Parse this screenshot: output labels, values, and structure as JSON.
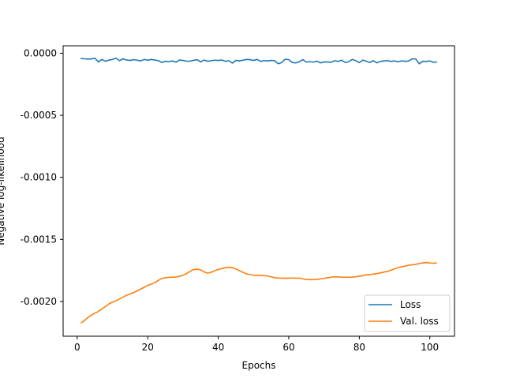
{
  "chart_data": {
    "type": "line",
    "title": "",
    "xlabel": "Epochs",
    "ylabel": "Negative log-likelihood",
    "xlim": [
      -4,
      107
    ],
    "ylim": [
      -0.00228,
      6e-05
    ],
    "xticks": [
      0,
      20,
      40,
      60,
      80,
      100
    ],
    "yticks": [
      0.0,
      -0.0005,
      -0.001,
      -0.0015,
      -0.002
    ],
    "ytick_labels": [
      "0.0000",
      "-0.0005",
      "-0.0010",
      "-0.0015",
      "-0.0020"
    ],
    "grid": false,
    "legend_position": "lower-right",
    "series": [
      {
        "name": "Loss",
        "color": "#1f77b4",
        "x": [
          1,
          2,
          3,
          4,
          5,
          6,
          7,
          8,
          9,
          10,
          11,
          12,
          13,
          14,
          15,
          16,
          17,
          18,
          19,
          20,
          21,
          22,
          23,
          24,
          25,
          26,
          27,
          28,
          29,
          30,
          31,
          32,
          33,
          34,
          35,
          36,
          37,
          38,
          39,
          40,
          41,
          42,
          43,
          44,
          45,
          46,
          47,
          48,
          49,
          50,
          51,
          52,
          53,
          54,
          55,
          56,
          57,
          58,
          59,
          60,
          61,
          62,
          63,
          64,
          65,
          66,
          67,
          68,
          69,
          70,
          71,
          72,
          73,
          74,
          75,
          76,
          77,
          78,
          79,
          80,
          81,
          82,
          83,
          84,
          85,
          86,
          87,
          88,
          89,
          90,
          91,
          92,
          93,
          94,
          95,
          96,
          97,
          98,
          99,
          100,
          101,
          102
        ],
        "y": [
          -4.2e-05,
          -4.5e-05,
          -4.7e-05,
          -4.6e-05,
          -4e-05,
          -7e-05,
          -5e-05,
          -6.5e-05,
          -5.5e-05,
          -5e-05,
          -4e-05,
          -6e-05,
          -4.5e-05,
          -5.5e-05,
          -5.8e-05,
          -5.2e-05,
          -5.6e-05,
          -6.2e-05,
          -5e-05,
          -5.7e-05,
          -5e-05,
          -5.5e-05,
          -6e-05,
          -7.5e-05,
          -6.5e-05,
          -6.8e-05,
          -6.2e-05,
          -7.2e-05,
          -5.5e-05,
          -5.8e-05,
          -6.4e-05,
          -6.4e-05,
          -5.7e-05,
          -5.2e-05,
          -7e-05,
          -5.5e-05,
          -6.5e-05,
          -6e-05,
          -5.6e-05,
          -5.8e-05,
          -5.5e-05,
          -6.5e-05,
          -6e-05,
          -8e-05,
          -5.8e-05,
          -6.2e-05,
          -5.6e-05,
          -5e-05,
          -5.2e-05,
          -5.8e-05,
          -5e-05,
          -6.5e-05,
          -6e-05,
          -6.2e-05,
          -5.8e-05,
          -6e-05,
          -8.5e-05,
          -7.5e-05,
          -4.8e-05,
          -5.2e-05,
          -7.5e-05,
          -7.8e-05,
          -6.8e-05,
          -5.2e-05,
          -7.2e-05,
          -6.8e-05,
          -7.2e-05,
          -6.4e-05,
          -7.8e-05,
          -7e-05,
          -7.1e-05,
          -7.3e-05,
          -6e-05,
          -6.6e-05,
          -5.6e-05,
          -7.5e-05,
          -6.8e-05,
          -5e-05,
          -6e-05,
          -7.6e-05,
          -5.5e-05,
          -6.5e-05,
          -7.5e-05,
          -6e-05,
          -7.8e-05,
          -6.6e-05,
          -6.2e-05,
          -6e-05,
          -6.6e-05,
          -6.2e-05,
          -6.8e-05,
          -6.2e-05,
          -6.5e-05,
          -6.3e-05,
          -4.5e-05,
          -4.6e-05,
          -8.5e-05,
          -6.5e-05,
          -6.6e-05,
          -6.2e-05,
          -7.3e-05,
          -7e-05
        ]
      },
      {
        "name": "Val. loss",
        "color": "#ff7f0e",
        "x": [
          1,
          2,
          3,
          4,
          5,
          6,
          7,
          8,
          9,
          10,
          11,
          12,
          13,
          14,
          15,
          16,
          17,
          18,
          19,
          20,
          21,
          22,
          23,
          24,
          25,
          26,
          27,
          28,
          29,
          30,
          31,
          32,
          33,
          34,
          35,
          36,
          37,
          38,
          39,
          40,
          41,
          42,
          43,
          44,
          45,
          46,
          47,
          48,
          49,
          50,
          51,
          52,
          53,
          54,
          55,
          56,
          57,
          58,
          59,
          60,
          61,
          62,
          63,
          64,
          65,
          66,
          67,
          68,
          69,
          70,
          71,
          72,
          73,
          74,
          75,
          76,
          77,
          78,
          79,
          80,
          81,
          82,
          83,
          84,
          85,
          86,
          87,
          88,
          89,
          90,
          91,
          92,
          93,
          94,
          95,
          96,
          97,
          98,
          99,
          100,
          101,
          102
        ],
        "y": [
          -0.002175,
          -0.002155,
          -0.00213,
          -0.00211,
          -0.002095,
          -0.00208,
          -0.00206,
          -0.00204,
          -0.00202,
          -0.002005,
          -0.001995,
          -0.00198,
          -0.001965,
          -0.00195,
          -0.00194,
          -0.001928,
          -0.001915,
          -0.0019,
          -0.001885,
          -0.00187,
          -0.00186,
          -0.001848,
          -0.00183,
          -0.001815,
          -0.001808,
          -0.001805,
          -0.001805,
          -0.001803,
          -0.001798,
          -0.001788,
          -0.001775,
          -0.001758,
          -0.001742,
          -0.00174,
          -0.001745,
          -0.001762,
          -0.001772,
          -0.001765,
          -0.001752,
          -0.001742,
          -0.001735,
          -0.001728,
          -0.001724,
          -0.001728,
          -0.001738,
          -0.001752,
          -0.001765,
          -0.001777,
          -0.001784,
          -0.001788,
          -0.00179,
          -0.00179,
          -0.00179,
          -0.001795,
          -0.001802,
          -0.001808,
          -0.001812,
          -0.001812,
          -0.001812,
          -0.001812,
          -0.001811,
          -0.001812,
          -0.001812,
          -0.001818,
          -0.001822,
          -0.001824,
          -0.001824,
          -0.001822,
          -0.001818,
          -0.001814,
          -0.001809,
          -0.001804,
          -0.001801,
          -0.001802,
          -0.001804,
          -0.001805,
          -0.001805,
          -0.001804,
          -0.001801,
          -0.001797,
          -0.001791,
          -0.001786,
          -0.001783,
          -0.00178,
          -0.001775,
          -0.00177,
          -0.001763,
          -0.001758,
          -0.001748,
          -0.001737,
          -0.001727,
          -0.00172,
          -0.001715,
          -0.001708,
          -0.001705,
          -0.001701,
          -0.001695,
          -0.001689,
          -0.001686,
          -0.00169,
          -0.001692,
          -0.00169
        ]
      }
    ]
  }
}
